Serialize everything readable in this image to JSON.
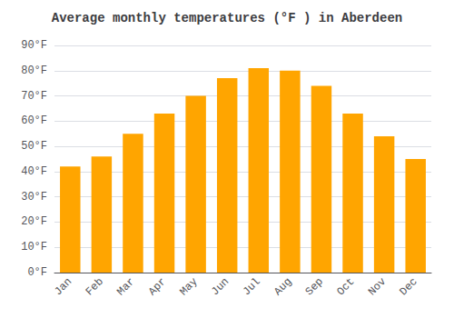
{
  "chart_data": {
    "type": "bar",
    "title": "Average monthly temperatures (°F ) in Aberdeen",
    "categories": [
      "Jan",
      "Feb",
      "Mar",
      "Apr",
      "May",
      "Jun",
      "Jul",
      "Aug",
      "Sep",
      "Oct",
      "Nov",
      "Dec"
    ],
    "values": [
      42,
      46,
      55,
      63,
      70,
      77,
      81,
      80,
      74,
      63,
      54,
      45
    ],
    "color": "#FFA500",
    "ylim": [
      0,
      90
    ],
    "yticks": [
      {
        "value": 0,
        "label": "0°F"
      },
      {
        "value": 10,
        "label": "10°F"
      },
      {
        "value": 20,
        "label": "20°F"
      },
      {
        "value": 30,
        "label": "30°F"
      },
      {
        "value": 40,
        "label": "40°F"
      },
      {
        "value": 50,
        "label": "50°F"
      },
      {
        "value": 60,
        "label": "60°F"
      },
      {
        "value": 70,
        "label": "70°F"
      },
      {
        "value": 80,
        "label": "80°F"
      },
      {
        "value": 90,
        "label": "90°F"
      }
    ],
    "grid": true
  }
}
